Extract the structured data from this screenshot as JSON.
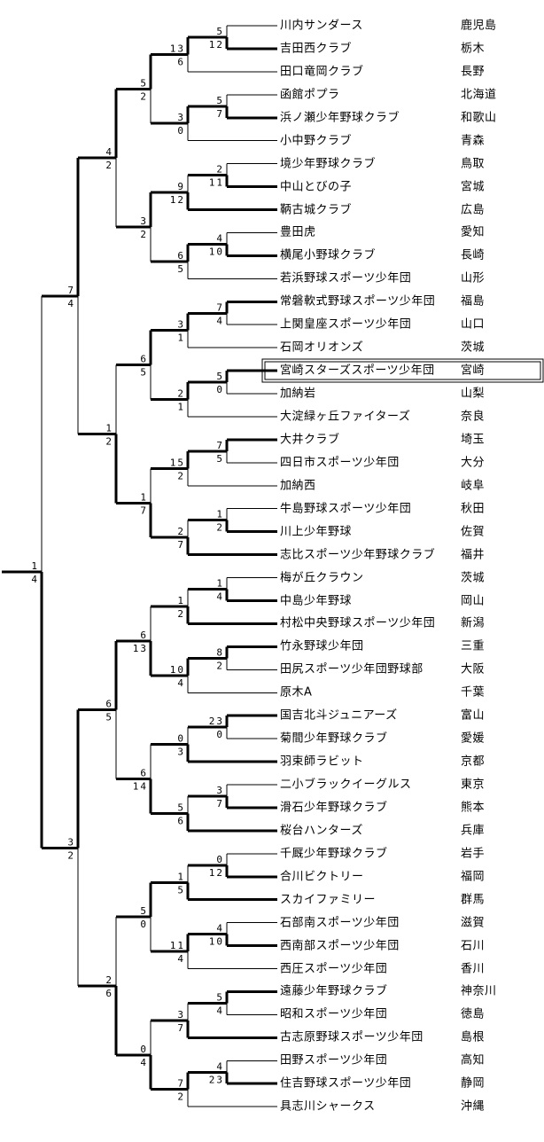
{
  "bracket": {
    "teams": [
      {
        "name": "川内サンダース",
        "prefecture": "鹿児島"
      },
      {
        "name": "吉田西クラブ",
        "prefecture": "栃木"
      },
      {
        "name": "田口竜岡クラブ",
        "prefecture": "長野"
      },
      {
        "name": "函館ポプラ",
        "prefecture": "北海道"
      },
      {
        "name": "浜ノ瀬少年野球クラブ",
        "prefecture": "和歌山"
      },
      {
        "name": "小中野クラブ",
        "prefecture": "青森"
      },
      {
        "name": "境少年野球クラブ",
        "prefecture": "鳥取"
      },
      {
        "name": "中山とびの子",
        "prefecture": "宮城"
      },
      {
        "name": "鞆古城クラブ",
        "prefecture": "広島"
      },
      {
        "name": "豊田虎",
        "prefecture": "愛知"
      },
      {
        "name": "横尾小野球クラブ",
        "prefecture": "長崎"
      },
      {
        "name": "若浜野球スポーツ少年団",
        "prefecture": "山形"
      },
      {
        "name": "常磐軟式野球スポーツ少年団",
        "prefecture": "福島"
      },
      {
        "name": "上関皇座スポーツ少年団",
        "prefecture": "山口"
      },
      {
        "name": "石岡オリオンズ",
        "prefecture": "茨城"
      },
      {
        "name": "宮崎スターズスポーツ少年団",
        "prefecture": "宮崎"
      },
      {
        "name": "加納岩",
        "prefecture": "山梨"
      },
      {
        "name": "大淀緑ヶ丘ファイターズ",
        "prefecture": "奈良"
      },
      {
        "name": "大井クラブ",
        "prefecture": "埼玉"
      },
      {
        "name": "四日市スポーツ少年団",
        "prefecture": "大分"
      },
      {
        "name": "加納西",
        "prefecture": "岐阜"
      },
      {
        "name": "牛島野球スポーツ少年団",
        "prefecture": "秋田"
      },
      {
        "name": "川上少年野球",
        "prefecture": "佐賀"
      },
      {
        "name": "志比スポーツ少年野球クラブ",
        "prefecture": "福井"
      },
      {
        "name": "梅が丘クラウン",
        "prefecture": "茨城"
      },
      {
        "name": "中島少年野球",
        "prefecture": "岡山"
      },
      {
        "name": "村松中央野球スポーツ少年団",
        "prefecture": "新潟"
      },
      {
        "name": "竹永野球少年団",
        "prefecture": "三重"
      },
      {
        "name": "田尻スポーツ少年団野球部",
        "prefecture": "大阪"
      },
      {
        "name": "原木A",
        "prefecture": "千葉"
      },
      {
        "name": "国吉北斗ジュニアーズ",
        "prefecture": "富山"
      },
      {
        "name": "菊間少年野球クラブ",
        "prefecture": "愛媛"
      },
      {
        "name": "羽束師ラビット",
        "prefecture": "京都"
      },
      {
        "name": "二小ブラックイーグルス",
        "prefecture": "東京"
      },
      {
        "name": "滑石少年野球クラブ",
        "prefecture": "熊本"
      },
      {
        "name": "桜台ハンターズ",
        "prefecture": "兵庫"
      },
      {
        "name": "千厩少年野球クラブ",
        "prefecture": "岩手"
      },
      {
        "name": "合川ビクトリー",
        "prefecture": "福岡"
      },
      {
        "name": "スカイファミリー",
        "prefecture": "群馬"
      },
      {
        "name": "石部南スポーツ少年団",
        "prefecture": "滋賀"
      },
      {
        "name": "西南部スポーツ少年団",
        "prefecture": "石川"
      },
      {
        "name": "西圧スポーツ少年団",
        "prefecture": "香川"
      },
      {
        "name": "遠藤少年野球クラブ",
        "prefecture": "神奈川"
      },
      {
        "name": "昭和スポーツ少年団",
        "prefecture": "徳島"
      },
      {
        "name": "古志原野球スポーツ少年団",
        "prefecture": "島根"
      },
      {
        "name": "田野スポーツ少年団",
        "prefecture": "高知"
      },
      {
        "name": "住吉野球スポーツ少年団",
        "prefecture": "静岡"
      },
      {
        "name": "具志川シャークス",
        "prefecture": "沖縄"
      }
    ],
    "selected_team": {
      "index": 15,
      "name": "宮崎スターズスポーツ少年団",
      "prefecture": "宮崎"
    },
    "matches": {
      "r1": [
        [
          5,
          12
        ],
        [
          5,
          7
        ],
        [
          2,
          11
        ],
        [
          4,
          10
        ],
        [
          7,
          4
        ],
        [
          5,
          0
        ],
        [
          7,
          5
        ],
        [
          1,
          2
        ],
        [
          1,
          4
        ],
        [
          8,
          2
        ],
        [
          23,
          0
        ],
        [
          3,
          7
        ],
        [
          0,
          12
        ],
        [
          4,
          10
        ],
        [
          5,
          4
        ],
        [
          4,
          23
        ]
      ],
      "r2": [
        [
          13,
          6
        ],
        [
          3,
          0
        ],
        [
          9,
          12
        ],
        [
          6,
          5
        ],
        [
          3,
          1
        ],
        [
          2,
          1
        ],
        [
          15,
          2
        ],
        [
          2,
          7
        ],
        [
          1,
          2
        ],
        [
          10,
          4
        ],
        [
          0,
          3
        ],
        [
          5,
          6
        ],
        [
          1,
          5
        ],
        [
          11,
          4
        ],
        [
          3,
          7
        ],
        [
          7,
          2
        ]
      ],
      "r3": [
        [
          5,
          2
        ],
        [
          3,
          2
        ],
        [
          6,
          5
        ],
        [
          1,
          7
        ],
        [
          6,
          13
        ],
        [
          6,
          14
        ],
        [
          5,
          0
        ],
        [
          0,
          4
        ]
      ],
      "qf": [
        [
          4,
          2
        ],
        [
          1,
          2
        ],
        [
          6,
          5
        ],
        [
          2,
          6
        ]
      ],
      "sf": [
        [
          7,
          4
        ],
        [
          3,
          2
        ]
      ],
      "final": [
        1,
        4
      ]
    },
    "line_color": "#000000",
    "background_color": "#ffffff"
  }
}
